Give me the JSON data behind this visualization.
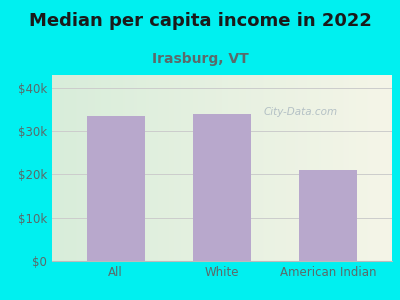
{
  "title": "Median per capita income in 2022",
  "subtitle": "Irasburg, VT",
  "categories": [
    "All",
    "White",
    "American Indian"
  ],
  "values": [
    33500,
    34000,
    21000
  ],
  "bar_color": "#b8a8cc",
  "title_fontsize": 13,
  "subtitle_fontsize": 10,
  "tick_label_fontsize": 8.5,
  "ytick_labels": [
    "$0",
    "$10k",
    "$20k",
    "$30k",
    "$40k"
  ],
  "ytick_values": [
    0,
    10000,
    20000,
    30000,
    40000
  ],
  "ylim": [
    0,
    43000
  ],
  "background_outer": "#00f0f0",
  "bg_left_color": "#d8edda",
  "bg_right_color": "#f5f5e8",
  "watermark": "City-Data.com",
  "title_color": "#1a1a1a",
  "subtitle_color": "#5a6a6a",
  "tick_color": "#5a6a6a",
  "grid_color": "#cccccc"
}
